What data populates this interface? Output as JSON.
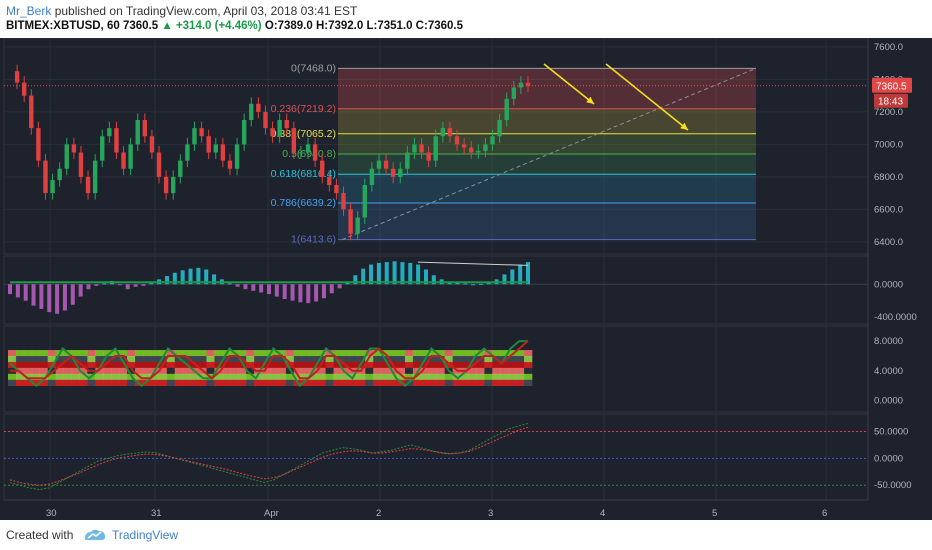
{
  "header": {
    "author": "Mr_Berk",
    "published_text": "published on TradingView.com, April 03, 2018 03:41 EST",
    "symbol": "BITMEX:XBTUSD, 60",
    "last": "7360.5",
    "change": "+314.0 (+4.46%)",
    "ohlc": "O:7389.0 H:7392.0 L:7351.0 C:7360.5"
  },
  "footer": {
    "created": "Created with",
    "brand": "TradingView"
  },
  "colors": {
    "background": "#1e222d",
    "up": "#26a65b",
    "down": "#e04040",
    "fib_lines": [
      "#9e9e9e",
      "#e05050",
      "#e8e04a",
      "#4caf50",
      "#26c6da",
      "#42a5f5",
      "#5c6bc0"
    ],
    "arrows": "#f5e020"
  },
  "chart_data": [
    {
      "type": "candlestick",
      "title": "BITMEX:XBTUSD, 60",
      "y_ticks": [
        "7600.0",
        "7400.0",
        "7200.0",
        "7000.0",
        "6800.0",
        "6600.0",
        "6400.0"
      ],
      "ylim": [
        6350,
        7630
      ],
      "x_ticks": [
        "30",
        "31",
        "Apr",
        "2",
        "3",
        "4",
        "5",
        "6"
      ],
      "last_price_label": "7360.5",
      "countdown_label": "18:43",
      "fibonacci": [
        {
          "label": "0(7468.0)",
          "value": 7468.0
        },
        {
          "label": "0.236(7219.2)",
          "value": 7219.2
        },
        {
          "label": "0.382(7065.2)",
          "value": 7065.2
        },
        {
          "label": "0.5(6940.8)",
          "value": 6940.8
        },
        {
          "label": "0.618(6816.4)",
          "value": 6816.4
        },
        {
          "label": "0.786(6639.2)",
          "value": 6639.2
        },
        {
          "label": "1(6413.6)",
          "value": 6413.6
        }
      ],
      "price_path": [
        7450,
        7380,
        7300,
        7100,
        6900,
        6700,
        6780,
        6850,
        7000,
        6950,
        6800,
        6700,
        6900,
        7050,
        7100,
        6950,
        6850,
        7000,
        7150,
        7050,
        6950,
        6800,
        6700,
        6800,
        6900,
        7000,
        7100,
        7050,
        6950,
        7000,
        6900,
        6850,
        7000,
        7150,
        7250,
        7200,
        7100,
        7050,
        7150,
        7100,
        6950,
        6950,
        7000,
        6900,
        6800,
        6750,
        6700,
        6600,
        6450,
        6550,
        6750,
        6850,
        6900,
        6850,
        6800,
        6850,
        6950,
        7000,
        6950,
        6900,
        7050,
        7100,
        7050,
        7000,
        6980,
        6950,
        6960,
        7000,
        7050,
        7150,
        7280,
        7350,
        7380,
        7360
      ]
    },
    {
      "type": "bar",
      "title": "",
      "y_ticks": [
        "0.0000",
        "-400.0000"
      ],
      "ylim": [
        -460,
        320
      ],
      "values": [
        -120,
        -160,
        -200,
        -260,
        -300,
        -340,
        -360,
        -320,
        -250,
        -150,
        -60,
        -20,
        10,
        40,
        -10,
        -60,
        -30,
        -20,
        20,
        60,
        100,
        140,
        170,
        190,
        200,
        180,
        120,
        60,
        10,
        -30,
        -60,
        -80,
        -100,
        -120,
        -150,
        -180,
        -200,
        -220,
        -230,
        -210,
        -170,
        -110,
        -50,
        30,
        110,
        190,
        240,
        260,
        270,
        280,
        270,
        260,
        240,
        180,
        110,
        60,
        30,
        20,
        10,
        0,
        5,
        20,
        60,
        120,
        180,
        240,
        270
      ]
    },
    {
      "type": "line",
      "title": "",
      "y_ticks": [
        "8.0000",
        "4.0000",
        "0.0000"
      ],
      "ylim": [
        -1,
        9.5
      ],
      "series": [
        {
          "values": [
            5,
            4,
            3,
            2,
            3,
            5,
            7,
            6,
            4,
            3,
            4,
            6,
            7,
            5,
            3,
            2,
            3,
            5,
            7,
            6,
            5,
            4,
            3,
            3,
            5,
            7,
            6,
            4,
            3,
            5,
            7,
            6,
            4,
            2,
            3,
            5,
            7,
            6,
            4,
            3,
            5,
            7,
            7,
            5,
            3,
            2,
            3,
            5,
            7,
            6,
            4,
            3,
            4,
            6,
            7,
            6,
            5,
            7,
            8,
            8
          ]
        },
        {
          "values": [
            4,
            4,
            3,
            3,
            3,
            4,
            5,
            6,
            5,
            4,
            4,
            5,
            6,
            6,
            4,
            3,
            3,
            4,
            6,
            6,
            6,
            5,
            4,
            3,
            4,
            6,
            6,
            5,
            4,
            4,
            6,
            6,
            5,
            3,
            3,
            4,
            6,
            6,
            5,
            4,
            4,
            6,
            7,
            6,
            4,
            3,
            3,
            4,
            6,
            6,
            5,
            4,
            4,
            5,
            6,
            6,
            5,
            6,
            7,
            8
          ]
        }
      ]
    },
    {
      "type": "line",
      "title": "",
      "y_ticks": [
        "50.0000",
        "0.0000",
        "-50.0000"
      ],
      "ylim": [
        -70,
        75
      ],
      "series": [
        {
          "values": [
            -45,
            -50,
            -55,
            -58,
            -55,
            -45,
            -35,
            -25,
            -15,
            -5,
            0,
            5,
            8,
            10,
            12,
            10,
            5,
            0,
            -5,
            -10,
            -15,
            -20,
            -25,
            -30,
            -35,
            -40,
            -45,
            -40,
            -30,
            -20,
            -10,
            0,
            10,
            15,
            20,
            18,
            15,
            10,
            12,
            15,
            20,
            25,
            20,
            15,
            10,
            8,
            10,
            15,
            25,
            35,
            45,
            55,
            60,
            65
          ]
        },
        {
          "values": [
            -40,
            -45,
            -48,
            -50,
            -48,
            -42,
            -35,
            -28,
            -20,
            -12,
            -5,
            0,
            3,
            6,
            8,
            7,
            4,
            0,
            -4,
            -8,
            -12,
            -16,
            -20,
            -25,
            -30,
            -34,
            -38,
            -36,
            -30,
            -22,
            -14,
            -6,
            2,
            8,
            12,
            14,
            13,
            10,
            10,
            12,
            15,
            18,
            17,
            14,
            11,
            9,
            10,
            13,
            20,
            28,
            36,
            44,
            52,
            58
          ]
        }
      ]
    }
  ]
}
